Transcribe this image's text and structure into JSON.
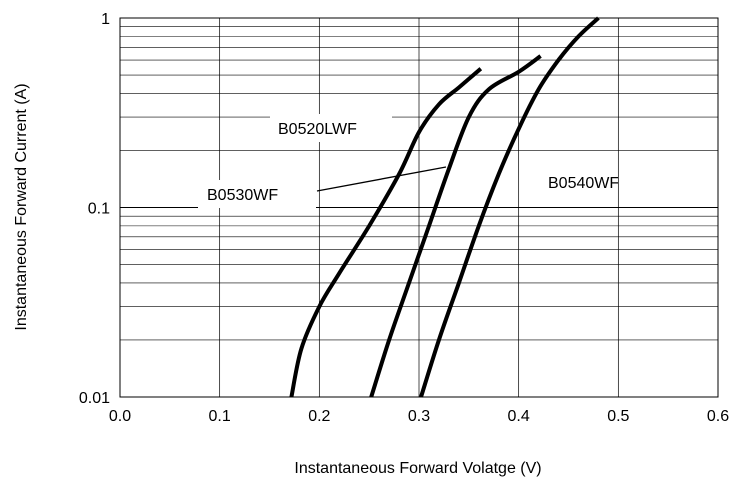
{
  "chart_data": {
    "type": "line",
    "title": "",
    "xlabel": "Instantaneous Forward Volatge (V)",
    "ylabel": "Instantaneous Forward Current (A)",
    "xlim": [
      0.0,
      0.6
    ],
    "ylim": [
      0.01,
      1
    ],
    "yscale": "log",
    "grid": true,
    "legend": "none",
    "x_ticks": [
      "0.0",
      "0.1",
      "0.2",
      "0.3",
      "0.4",
      "0.5",
      "0.6"
    ],
    "y_ticks": [
      "0.01",
      "0.1",
      "1"
    ],
    "series": [
      {
        "name": "B0520LWF",
        "points": [
          [
            0.172,
            0.01
          ],
          [
            0.182,
            0.018
          ],
          [
            0.2,
            0.03
          ],
          [
            0.22,
            0.045
          ],
          [
            0.25,
            0.08
          ],
          [
            0.28,
            0.15
          ],
          [
            0.3,
            0.25
          ],
          [
            0.32,
            0.35
          ],
          [
            0.34,
            0.43
          ],
          [
            0.362,
            0.54
          ]
        ]
      },
      {
        "name": "B0530WF",
        "points": [
          [
            0.252,
            0.01
          ],
          [
            0.27,
            0.02
          ],
          [
            0.29,
            0.04
          ],
          [
            0.31,
            0.08
          ],
          [
            0.33,
            0.16
          ],
          [
            0.35,
            0.3
          ],
          [
            0.37,
            0.42
          ],
          [
            0.4,
            0.52
          ],
          [
            0.422,
            0.63
          ]
        ]
      },
      {
        "name": "B0540WF",
        "points": [
          [
            0.302,
            0.01
          ],
          [
            0.32,
            0.02
          ],
          [
            0.34,
            0.04
          ],
          [
            0.36,
            0.08
          ],
          [
            0.38,
            0.15
          ],
          [
            0.4,
            0.26
          ],
          [
            0.42,
            0.42
          ],
          [
            0.44,
            0.6
          ],
          [
            0.46,
            0.8
          ],
          [
            0.48,
            1.0
          ]
        ]
      }
    ],
    "annotations": [
      "B0520LWF",
      "B0530WF",
      "B0540WF"
    ]
  }
}
